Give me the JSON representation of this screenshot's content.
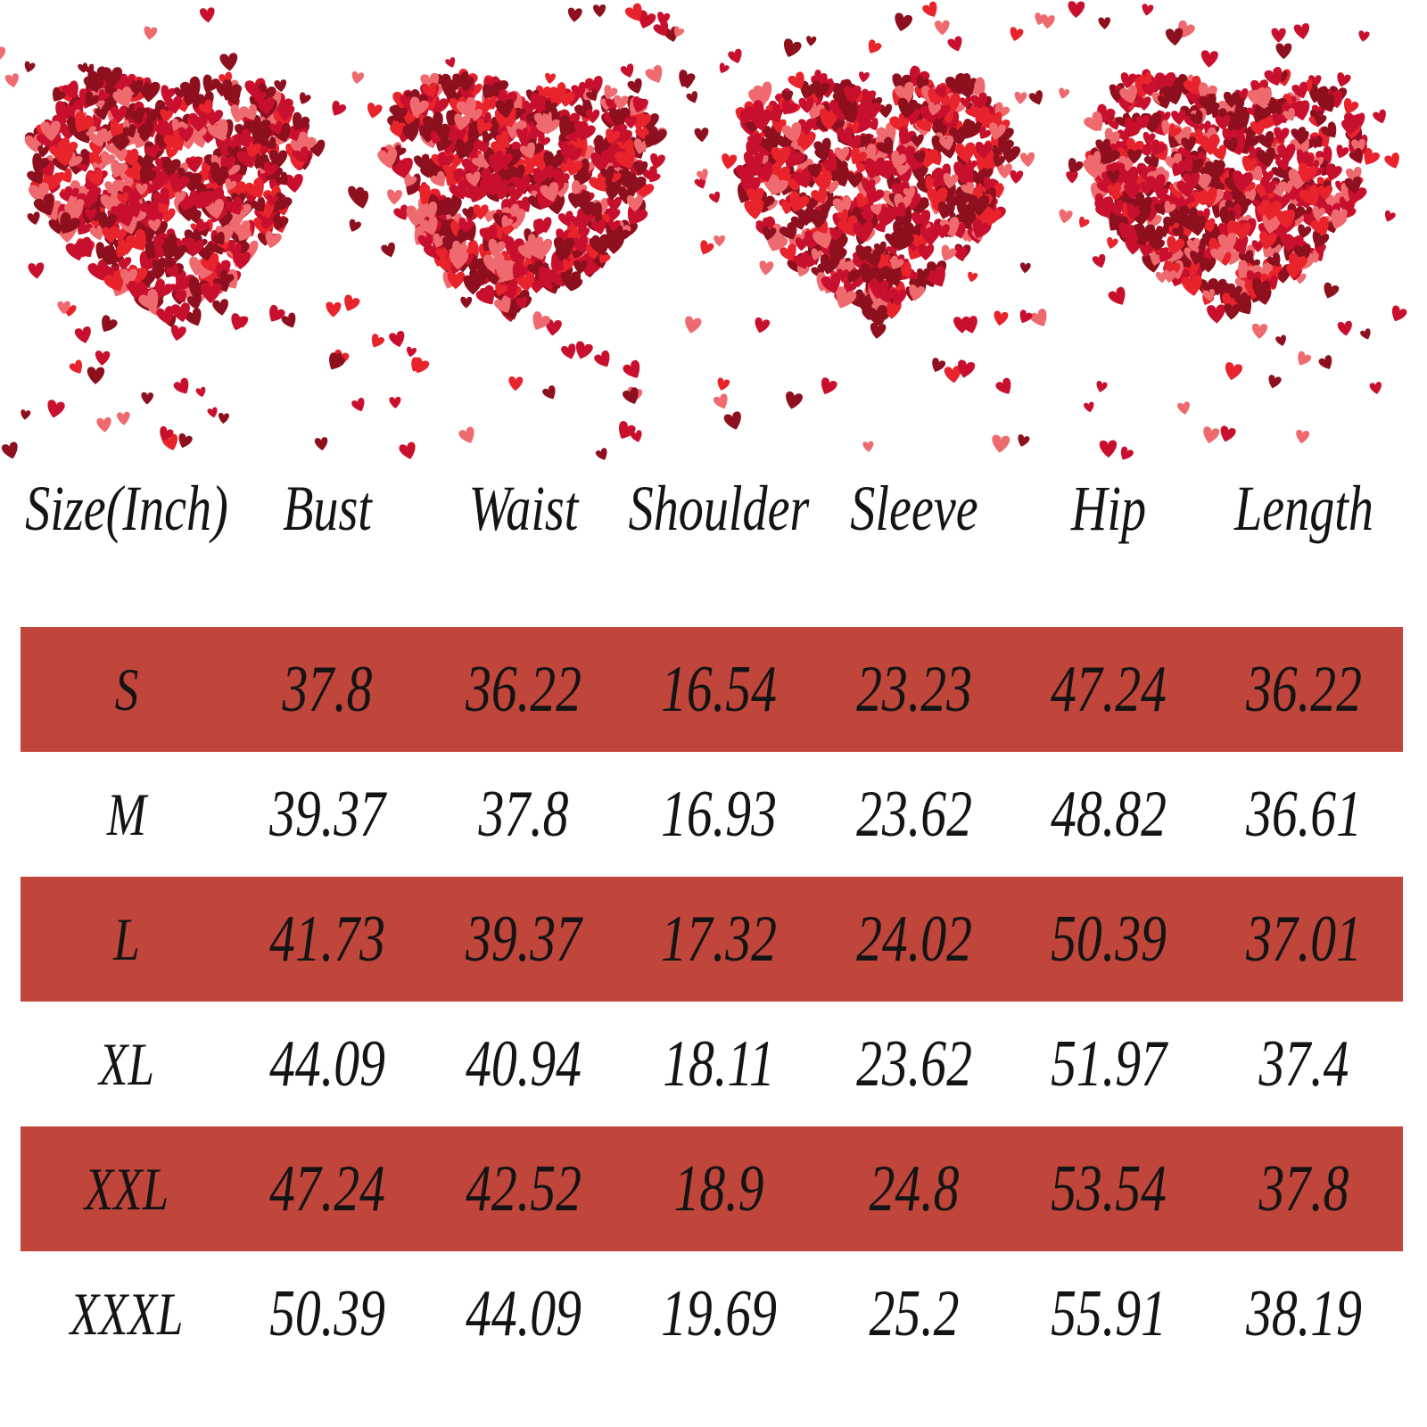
{
  "colors": {
    "band": "#c0453a",
    "text": "#141414",
    "heart_dark": "#8e0f1e",
    "heart_mid": "#c8102e",
    "heart_bright": "#e8232c",
    "heart_pink": "#ef6a6e"
  },
  "banner": {
    "decoration": "heart-cluster-icon",
    "count": 4
  },
  "table": {
    "headers": [
      "Size(Inch)",
      "Bust",
      "Waist",
      "Shoulder",
      "Sleeve",
      "Hip",
      "Length"
    ],
    "rows": [
      {
        "size": "S",
        "bust": "37.8",
        "waist": "36.22",
        "shoulder": "16.54",
        "sleeve": "23.23",
        "hip": "47.24",
        "length": "36.22"
      },
      {
        "size": "M",
        "bust": "39.37",
        "waist": "37.8",
        "shoulder": "16.93",
        "sleeve": "23.62",
        "hip": "48.82",
        "length": "36.61"
      },
      {
        "size": "L",
        "bust": "41.73",
        "waist": "39.37",
        "shoulder": "17.32",
        "sleeve": "24.02",
        "hip": "50.39",
        "length": "37.01"
      },
      {
        "size": "XL",
        "bust": "44.09",
        "waist": "40.94",
        "shoulder": "18.11",
        "sleeve": "23.62",
        "hip": "51.97",
        "length": "37.4"
      },
      {
        "size": "XXL",
        "bust": "47.24",
        "waist": "42.52",
        "shoulder": "18.9",
        "sleeve": "24.8",
        "hip": "53.54",
        "length": "37.8"
      },
      {
        "size": "XXXL",
        "bust": "50.39",
        "waist": "44.09",
        "shoulder": "19.69",
        "sleeve": "25.2",
        "hip": "55.91",
        "length": "38.19"
      }
    ]
  }
}
